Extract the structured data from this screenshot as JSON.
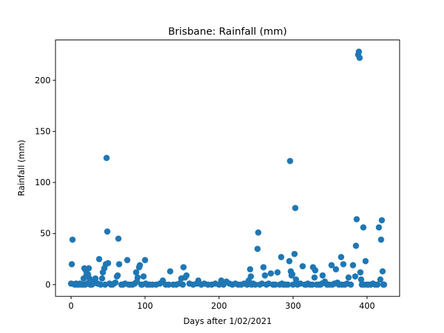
{
  "chart_data": {
    "type": "scatter",
    "title": "Brisbane: Rainfall (mm)",
    "xlabel": "Days after 1/02/2021",
    "ylabel": "Rainfall (mm)",
    "xlim": [
      -21,
      444
    ],
    "ylim": [
      -11.5,
      239.5
    ],
    "xticks": [
      0,
      100,
      200,
      300,
      400
    ],
    "yticks": [
      0,
      50,
      100,
      150,
      200
    ],
    "grid": false,
    "color": "#1f77b4",
    "series": [
      {
        "x": [
          0,
          1,
          2,
          4,
          5,
          7,
          8,
          10,
          12,
          14,
          16,
          17,
          18,
          19,
          20,
          21,
          22,
          23,
          24,
          25,
          26,
          28,
          30,
          31,
          33,
          36,
          38,
          40,
          42,
          43,
          45,
          46,
          47,
          48,
          49,
          50,
          52,
          54,
          56,
          58,
          60,
          62,
          63,
          64,
          65,
          68,
          70,
          73,
          76,
          78,
          80,
          83,
          86,
          88,
          89,
          90,
          92,
          93,
          95,
          96,
          98,
          100,
          101,
          103,
          106,
          110,
          115,
          120,
          124,
          128,
          132,
          134,
          138,
          142,
          146,
          149,
          151,
          152,
          154,
          156,
          160,
          165,
          170,
          172,
          176,
          180,
          185,
          190,
          195,
          200,
          203,
          206,
          210,
          214,
          218,
          222,
          226,
          230,
          234,
          238,
          240,
          242,
          243,
          244,
          246,
          249,
          252,
          253,
          255,
          258,
          260,
          262,
          264,
          267,
          270,
          273,
          276,
          279,
          282,
          284,
          285,
          287,
          290,
          293,
          295,
          296,
          297,
          298,
          299,
          300,
          302,
          303,
          304,
          306,
          310,
          313,
          316,
          318,
          320,
          323,
          326,
          327,
          329,
          330,
          332,
          335,
          337,
          339,
          340,
          343,
          346,
          349,
          352,
          353,
          356,
          358,
          360,
          362,
          365,
          366,
          368,
          370,
          373,
          375,
          378,
          381,
          384,
          385,
          386,
          388,
          389,
          390,
          391,
          392,
          393,
          395,
          396,
          398,
          400,
          402,
          405,
          408,
          411,
          414,
          416,
          418,
          419,
          420,
          421,
          422,
          423
        ],
        "y": [
          1,
          20,
          44,
          0.5,
          0,
          1,
          0,
          0,
          1,
          0,
          0,
          6,
          16,
          0,
          14,
          10,
          1,
          10,
          16,
          6,
          0,
          0,
          1,
          3,
          6,
          1,
          25,
          0,
          6,
          12,
          16,
          0,
          20,
          124,
          52,
          21,
          1,
          0,
          0,
          1,
          2,
          8,
          9,
          45,
          20,
          0,
          0,
          1,
          24,
          0,
          0,
          0,
          1,
          12,
          3,
          7,
          17,
          19,
          0,
          0,
          8,
          24,
          1,
          0,
          0,
          0,
          0,
          1,
          4,
          0,
          0,
          13,
          0,
          0,
          1,
          6,
          0,
          17,
          7,
          9,
          1,
          0,
          1,
          4,
          0,
          1,
          0,
          0,
          1,
          0,
          4,
          0,
          3,
          1,
          0,
          1,
          0,
          0,
          1,
          0,
          4,
          15,
          8,
          0,
          1,
          0,
          35,
          51,
          0,
          1,
          17,
          9,
          0,
          1,
          11,
          0,
          0,
          12,
          0,
          27,
          1,
          0,
          0,
          0,
          23,
          121,
          13,
          9,
          10,
          0,
          30,
          75,
          5,
          0,
          1,
          18,
          0,
          0,
          1,
          0,
          0,
          17,
          7,
          14,
          0,
          0,
          0,
          1,
          9,
          3,
          0,
          0,
          19,
          0,
          1,
          15,
          2,
          0,
          27,
          0,
          20,
          0,
          1,
          7,
          0,
          19,
          8,
          38,
          64,
          225,
          228,
          222,
          12,
          5,
          0,
          56,
          0,
          23,
          0,
          0,
          0,
          1,
          0,
          0,
          56,
          5,
          44,
          63,
          13,
          0,
          0
        ]
      }
    ]
  }
}
